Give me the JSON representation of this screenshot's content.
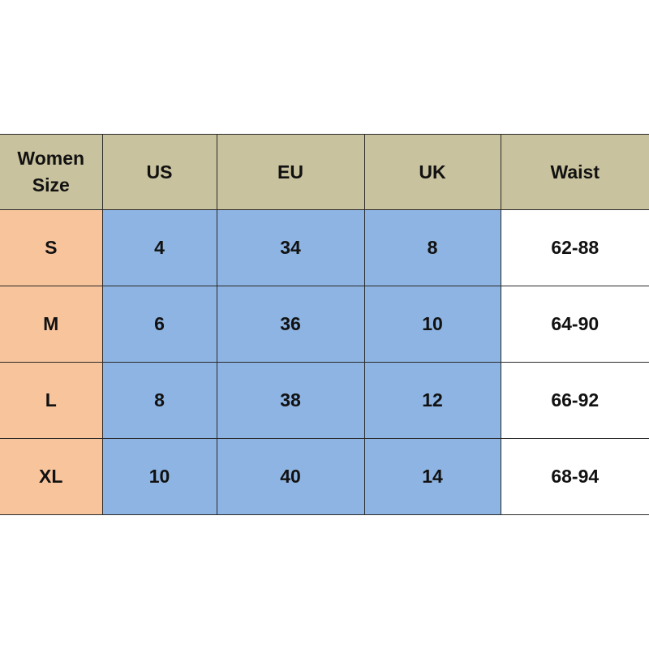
{
  "colors": {
    "header": "#c9c29e",
    "size_column": "#f8c49b",
    "conversion_cells": "#8db4e2",
    "waist_cells": "#ffffff"
  },
  "table": {
    "headers": [
      "Women\nSize",
      "US",
      "EU",
      "UK",
      "Waist"
    ],
    "header_lines": [
      "Women",
      "Size"
    ],
    "rows": [
      {
        "size": "S",
        "us": "4",
        "eu": "34",
        "uk": "8",
        "waist": "62-88"
      },
      {
        "size": "M",
        "us": "6",
        "eu": "36",
        "uk": "10",
        "waist": "64-90"
      },
      {
        "size": "L",
        "us": "8",
        "eu": "38",
        "uk": "12",
        "waist": "66-92"
      },
      {
        "size": "XL",
        "us": "10",
        "eu": "40",
        "uk": "14",
        "waist": "68-94"
      }
    ]
  }
}
